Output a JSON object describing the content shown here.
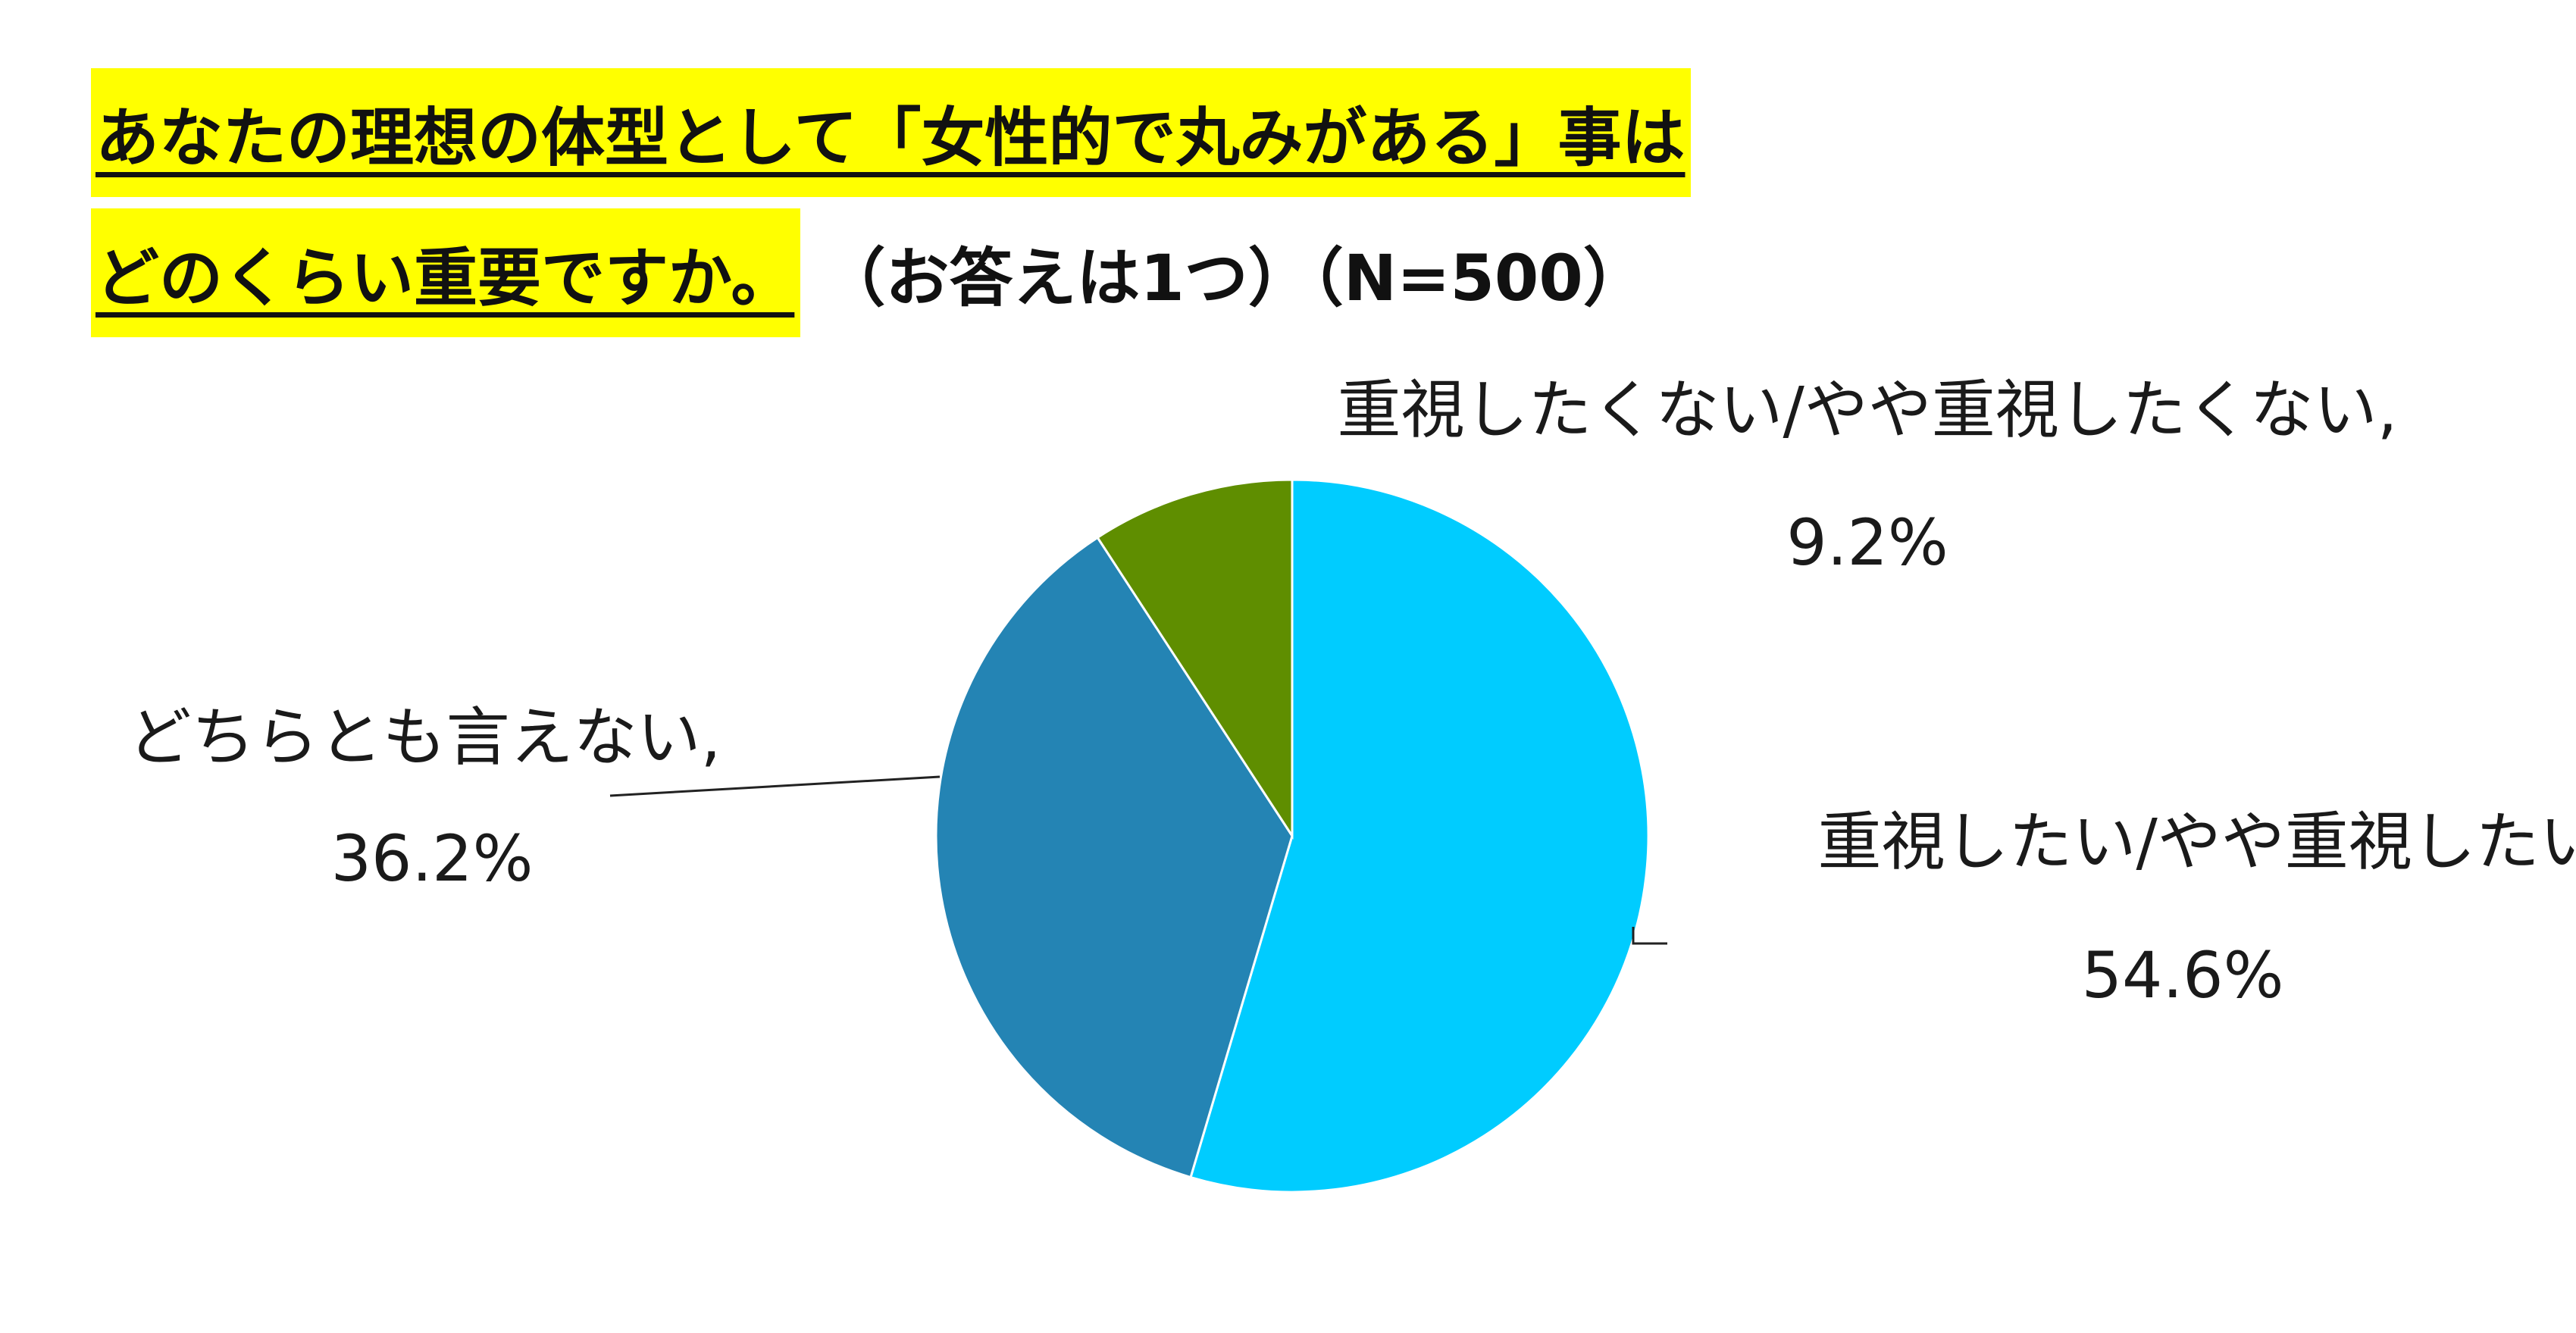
{
  "chart_data": {
    "type": "pie",
    "title_line1": "あなたの理想の体型として「女性的で丸みがある」事は",
    "title_line2_highlight": "どのくらい重要ですか。",
    "title_line2_rest": "（お答えは1つ）（N=500）",
    "start_angle": "12 o'clock",
    "direction": "clockwise",
    "slices": [
      {
        "name": "重視したい/やや重視したい,",
        "value_label": "54.6%",
        "value": 54.6,
        "color": "#00ccff"
      },
      {
        "name": "どちらとも言えない,",
        "value_label": "36.2%",
        "value": 36.2,
        "color": "#2484b4"
      },
      {
        "name": "重視したくない/やや重視したくない,",
        "value_label": "9.2%",
        "value": 9.2,
        "color": "#5f8e00"
      }
    ]
  }
}
